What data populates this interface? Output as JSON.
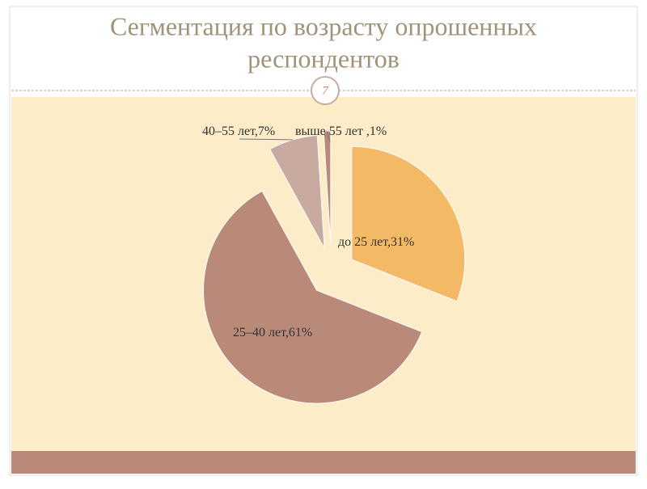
{
  "header": {
    "title_line1": "Сегментация по возрасту опрошенных",
    "title_line2": "респондентов",
    "slide_number": 7
  },
  "chart_data": {
    "type": "pie",
    "categories": [
      "до 25 лет",
      "25–40 лет",
      "40–55 лет",
      "выше 55 лет"
    ],
    "values": [
      31,
      61,
      7,
      1
    ],
    "value_labels": [
      ",31%",
      ",61%",
      ",7%",
      " ,1%"
    ],
    "colors": [
      "#f3b964",
      "#b98a7a",
      "#c9aaa0",
      "#b98a7a"
    ]
  }
}
